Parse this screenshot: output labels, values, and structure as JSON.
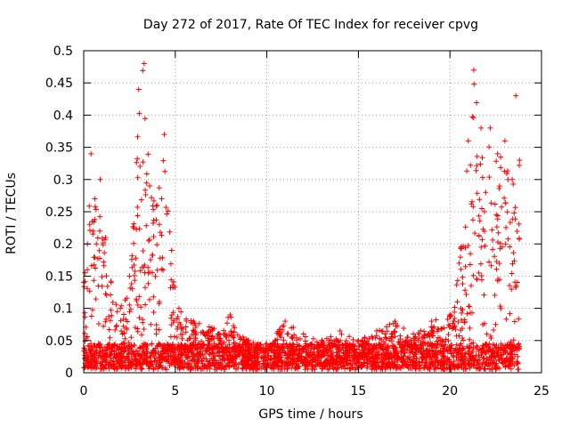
{
  "chart_data": {
    "type": "scatter",
    "title": "Day 272 of 2017, Rate Of TEC Index for receiver cpvg",
    "xlabel": "GPS time / hours",
    "ylabel": "ROTI / TECUs",
    "xlim": [
      0,
      25
    ],
    "ylim": [
      0,
      0.5
    ],
    "xticks": [
      "0",
      "5",
      "10",
      "15",
      "20",
      "25"
    ],
    "yticks": [
      "0",
      "0.05",
      "0.1",
      "0.15",
      "0.2",
      "0.25",
      "0.3",
      "0.35",
      "0.4",
      "0.45",
      "0.5"
    ],
    "grid": true,
    "marker": "+",
    "color": "#ff0000",
    "x_data_range": [
      0,
      23.8
    ],
    "envelope": [
      {
        "x": 0.0,
        "y": 0.14
      },
      {
        "x": 0.2,
        "y": 0.2
      },
      {
        "x": 0.4,
        "y": 0.34
      },
      {
        "x": 0.6,
        "y": 0.27
      },
      {
        "x": 0.9,
        "y": 0.3
      },
      {
        "x": 1.2,
        "y": 0.21
      },
      {
        "x": 1.5,
        "y": 0.14
      },
      {
        "x": 2.0,
        "y": 0.1
      },
      {
        "x": 2.5,
        "y": 0.15
      },
      {
        "x": 3.0,
        "y": 0.44
      },
      {
        "x": 3.3,
        "y": 0.48
      },
      {
        "x": 3.6,
        "y": 0.29
      },
      {
        "x": 4.0,
        "y": 0.26
      },
      {
        "x": 4.4,
        "y": 0.37
      },
      {
        "x": 4.8,
        "y": 0.19
      },
      {
        "x": 5.2,
        "y": 0.1
      },
      {
        "x": 6.0,
        "y": 0.08
      },
      {
        "x": 7.0,
        "y": 0.07
      },
      {
        "x": 8.0,
        "y": 0.09
      },
      {
        "x": 9.0,
        "y": 0.05
      },
      {
        "x": 10.0,
        "y": 0.045
      },
      {
        "x": 11.0,
        "y": 0.08
      },
      {
        "x": 12.0,
        "y": 0.06
      },
      {
        "x": 13.0,
        "y": 0.05
      },
      {
        "x": 14.0,
        "y": 0.065
      },
      {
        "x": 15.0,
        "y": 0.05
      },
      {
        "x": 16.0,
        "y": 0.065
      },
      {
        "x": 17.0,
        "y": 0.08
      },
      {
        "x": 18.0,
        "y": 0.06
      },
      {
        "x": 19.0,
        "y": 0.08
      },
      {
        "x": 20.0,
        "y": 0.09
      },
      {
        "x": 20.5,
        "y": 0.17
      },
      {
        "x": 21.0,
        "y": 0.36
      },
      {
        "x": 21.3,
        "y": 0.47
      },
      {
        "x": 21.7,
        "y": 0.38
      },
      {
        "x": 22.2,
        "y": 0.38
      },
      {
        "x": 22.6,
        "y": 0.34
      },
      {
        "x": 23.0,
        "y": 0.36
      },
      {
        "x": 23.4,
        "y": 0.3
      },
      {
        "x": 23.6,
        "y": 0.43
      },
      {
        "x": 23.8,
        "y": 0.33
      }
    ]
  }
}
